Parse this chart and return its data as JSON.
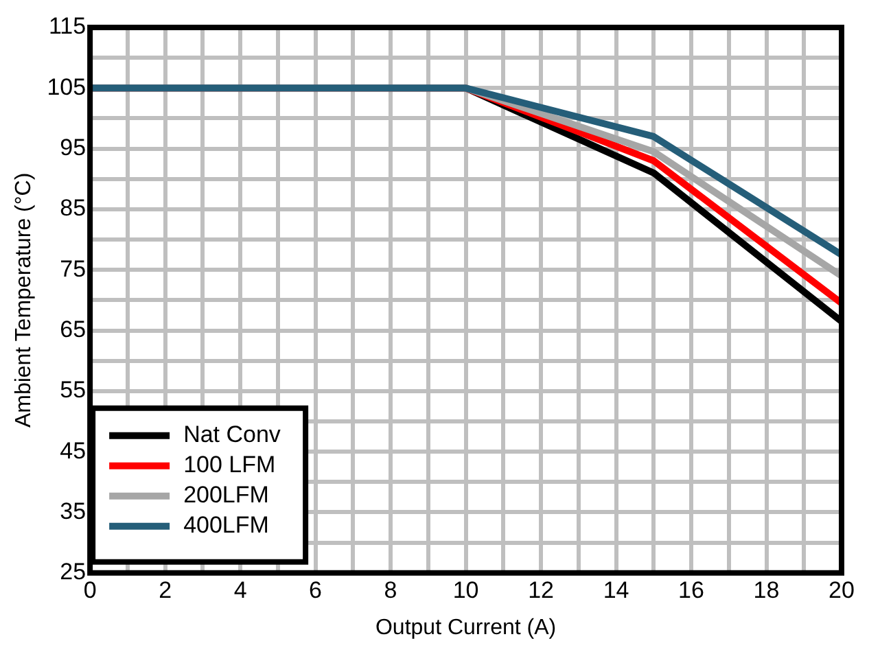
{
  "chart_data": {
    "type": "line",
    "xlabel": "Output Current (A)",
    "ylabel": "Ambient Temperature (°C)",
    "x": [
      0,
      10,
      15,
      20
    ],
    "series": [
      {
        "name": "Nat Conv",
        "color": "#000000",
        "values": [
          105,
          105,
          91,
          66.5
        ]
      },
      {
        "name": "100 LFM",
        "color": "#ff0000",
        "values": [
          105,
          105,
          93,
          69.5
        ]
      },
      {
        "name": "200LFM",
        "color": "#a6a6a6",
        "values": [
          105,
          105,
          94.5,
          74
        ]
      },
      {
        "name": "400LFM",
        "color": "#255e79",
        "values": [
          105,
          105,
          97,
          77.5
        ]
      }
    ],
    "xlim": [
      0,
      20
    ],
    "ylim": [
      25,
      115
    ],
    "xticks": [
      0,
      {
        "value": 1,
        "label": null
      },
      2,
      {
        "value": 3,
        "label": null
      },
      4,
      {
        "value": 5,
        "label": null
      },
      6,
      {
        "value": 7,
        "label": null
      },
      8,
      {
        "value": 9,
        "label": null
      },
      10,
      {
        "value": 11,
        "label": null
      },
      12,
      {
        "value": 13,
        "label": null
      },
      14,
      {
        "value": 15,
        "label": null
      },
      16,
      {
        "value": 17,
        "label": null
      },
      18,
      {
        "value": 19,
        "label": null
      },
      20
    ],
    "yticks": [
      25,
      {
        "value": 30,
        "label": null
      },
      35,
      {
        "value": 40,
        "label": null
      },
      45,
      {
        "value": 50,
        "label": null
      },
      55,
      {
        "value": 60,
        "label": null
      },
      65,
      {
        "value": 70,
        "label": null
      },
      75,
      {
        "value": 80,
        "label": null
      },
      85,
      {
        "value": 90,
        "label": null
      },
      95,
      {
        "value": 100,
        "label": null
      },
      105,
      {
        "value": 110,
        "label": null
      },
      115
    ],
    "grid": true,
    "legend": "bottom left",
    "marker": "none",
    "line_style": "solid"
  }
}
